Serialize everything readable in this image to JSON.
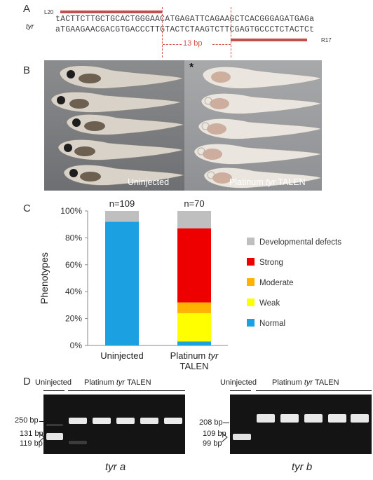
{
  "panels": {
    "a": "A",
    "b": "B",
    "c": "C",
    "d": "D"
  },
  "panelA": {
    "gene": "tyr",
    "left_arm": "L20",
    "right_arm": "R17",
    "top_seq": "tACTTCTTGCTGCACTGGGAACATGAGATTCAGAAGCTCACGGGAGATGAGa",
    "bottom_seq": "aTGAAGAACGACGTGACCCTTGTACTCTAAGTCTTCGAGTGCCCTCTACTCt",
    "spacer": "13 bp"
  },
  "panelB": {
    "left_label": "Uninjected",
    "right_label_pre": "Platinum ",
    "right_label_gene": "tyr",
    "right_label_post": " TALEN",
    "asterisk": "*"
  },
  "chart_data": {
    "type": "bar",
    "stacked": true,
    "categories": [
      "Uninjected",
      "Platinum tyr TALEN"
    ],
    "category_lines": [
      [
        "Uninjected"
      ],
      [
        "Platinum ",
        "tyr",
        "TALEN"
      ]
    ],
    "n_labels": [
      "n=109",
      "n=70"
    ],
    "ylabel": "Phenotypes",
    "ylim": [
      0,
      100
    ],
    "yticks": [
      "0%",
      "20%",
      "40%",
      "60%",
      "80%",
      "100%"
    ],
    "legend_position": "right",
    "series": [
      {
        "name": "Normal",
        "color": "#1ba1e2",
        "values": [
          92,
          3
        ]
      },
      {
        "name": "Weak",
        "color": "#ffff00",
        "values": [
          0,
          21
        ]
      },
      {
        "name": "Moderate",
        "color": "#ffb300",
        "values": [
          0,
          8
        ]
      },
      {
        "name": "Strong",
        "color": "#ee0000",
        "values": [
          0,
          55
        ]
      },
      {
        "name": "Developmental defects",
        "color": "#bfbfbf",
        "values": [
          8,
          13
        ]
      }
    ],
    "legend_order": [
      "Developmental defects",
      "Strong",
      "Moderate",
      "Weak",
      "Normal"
    ]
  },
  "panelD": {
    "gels": [
      {
        "label": "tyr a",
        "uninjected": "Uninjected",
        "talen_pre": "Platinum ",
        "talen_gene": "tyr",
        "talen_post": " TALEN",
        "markers": [
          "250 bp",
          "131 bp",
          "119 bp"
        ]
      },
      {
        "label": "tyr b",
        "uninjected": "Uninjected",
        "talen_pre": "Platinum ",
        "talen_gene": "tyr",
        "talen_post": " TALEN",
        "markers": [
          "208 bp",
          "109 bp",
          "99 bp"
        ]
      }
    ]
  }
}
